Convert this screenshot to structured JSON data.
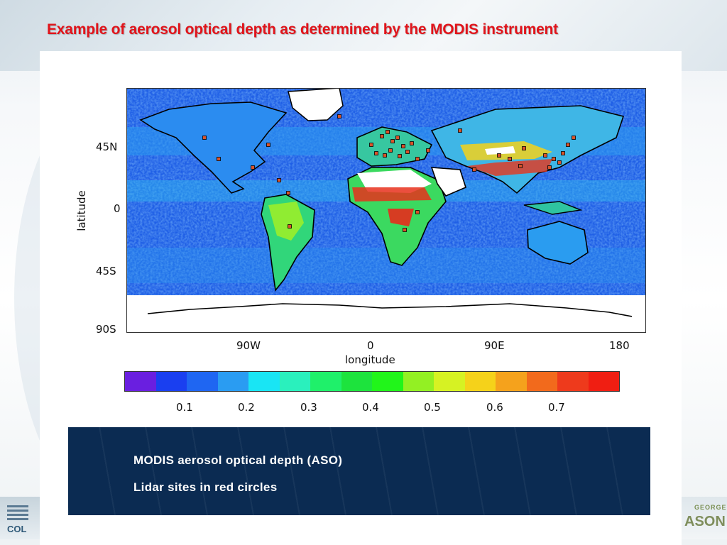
{
  "slide": {
    "title": "Example of aerosol optical depth as determined by the MODIS instrument"
  },
  "map": {
    "latitude_ticks": [
      "45N",
      "0",
      "45S",
      "90S"
    ],
    "longitude_ticks": [
      "90W",
      "0",
      "90E",
      "180"
    ],
    "xlabel": "longitude",
    "ylabel": "latitude",
    "colors": {
      "ocean_low": "#1e5fe6",
      "ocean_mid": "#2a9bf0",
      "aod_mid": "#37e07c",
      "aod_high": "#e82a1c",
      "no_data": "#ffffff",
      "coast": "#000000",
      "site_marker": "#d9532a"
    }
  },
  "colorbar": {
    "colors": [
      "#6a1fe0",
      "#1a3ff0",
      "#1f66f2",
      "#2a9cf2",
      "#19e5f4",
      "#2af0bd",
      "#1ff06a",
      "#1de33d",
      "#21f51a",
      "#93f023",
      "#d6f223",
      "#f5d21a",
      "#f5a21c",
      "#f26a1c",
      "#ee3a1c",
      "#f01e12"
    ],
    "tick_labels": [
      "0.1",
      "0.2",
      "0.3",
      "0.4",
      "0.5",
      "0.6",
      "0.7"
    ]
  },
  "caption": {
    "line1": "MODIS aerosol optical depth (ASO)",
    "line2": "Lidar sites in red circles"
  },
  "logos": {
    "left_text": "COL",
    "right_small": "GEORGE",
    "right_big": "ASON"
  }
}
